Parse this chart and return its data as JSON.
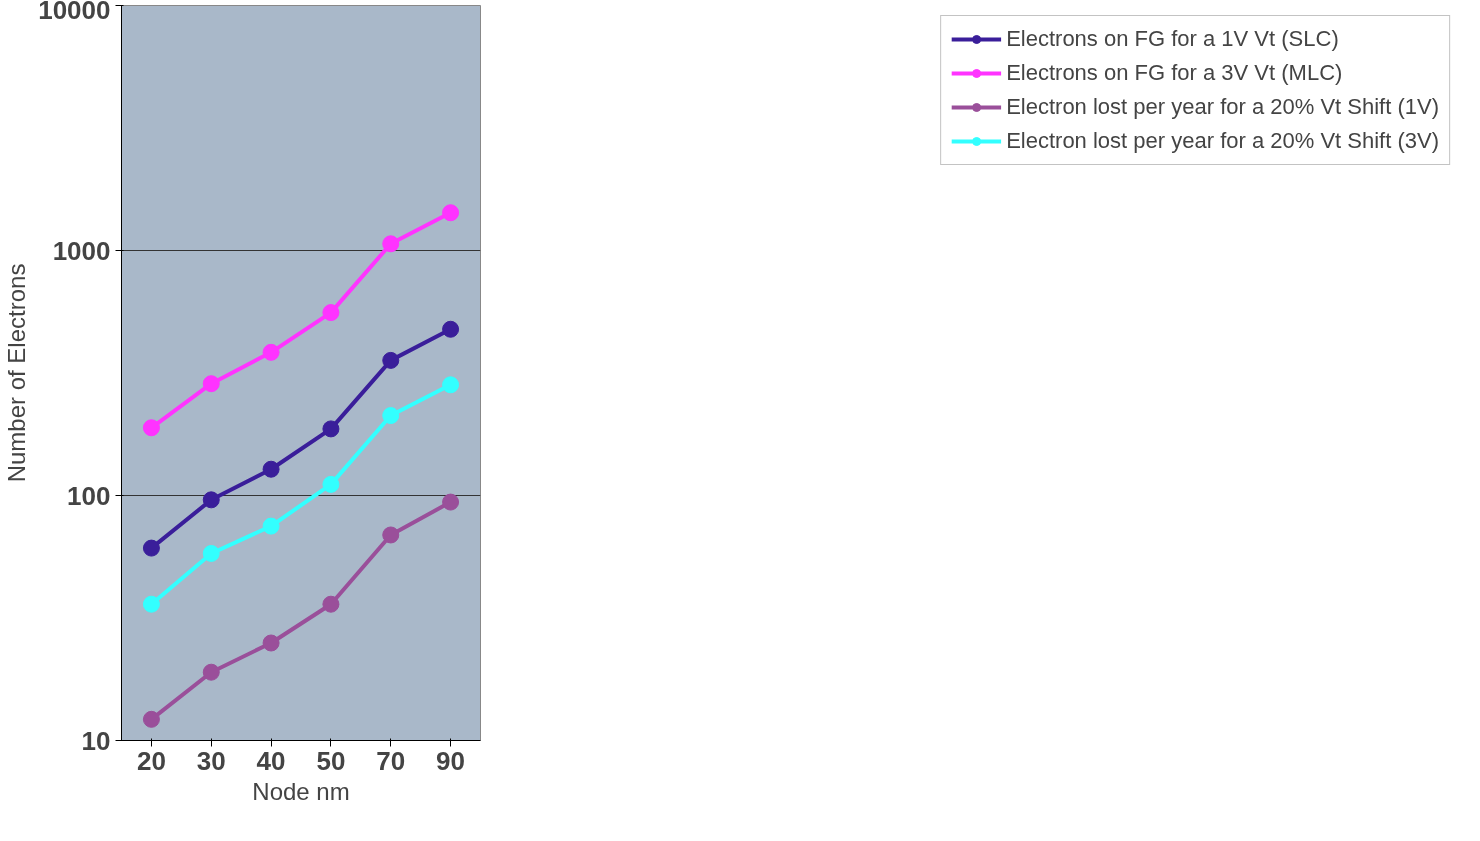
{
  "chart_data": {
    "type": "line",
    "xlabel": "Node nm",
    "ylabel": "Number of Electrons",
    "categories": [
      "20",
      "30",
      "40",
      "50",
      "70",
      "90"
    ],
    "series": [
      {
        "name": "Electrons on FG for a 1V Vt (SLC)",
        "color": "#3a1e9a",
        "values": [
          61,
          96,
          128,
          187,
          356,
          477
        ]
      },
      {
        "name": "Electrons on FG for a 3V Vt (MLC)",
        "color": "#ff33ff",
        "values": [
          189,
          286,
          384,
          558,
          1065,
          1426
        ]
      },
      {
        "name": "Electron lost per year for a 20% Vt Shift (1V)",
        "color": "#9a4f9a",
        "values": [
          12.2,
          19,
          25,
          36,
          69,
          94
        ]
      },
      {
        "name": "Electron lost per year for a 20% Vt Shift (3V)",
        "color": "#33ffff",
        "values": [
          36,
          58,
          75,
          111,
          212,
          283
        ]
      }
    ],
    "log": true,
    "ylim": [
      10,
      10000
    ],
    "yticks": [
      10,
      100,
      1000,
      10000
    ],
    "grid": "y",
    "legend": "right",
    "marker": "circle",
    "line_style": "solid"
  }
}
